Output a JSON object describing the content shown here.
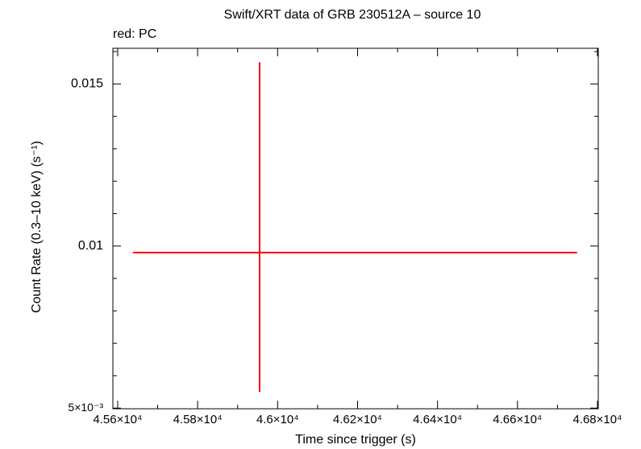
{
  "chart_data": {
    "type": "errorbar",
    "title": "Swift/XRT data of GRB 230512A – source 10",
    "subtitle": "red: PC",
    "x_label": "Time since trigger (s)",
    "y_label": "Count Rate (0.3–10 keV) (s⁻¹)",
    "series": [
      {
        "color": "#ff0000",
        "x": [
          45955
        ],
        "values": [
          0.0098
        ],
        "xerr_minus": [
          317
        ],
        "xerr_plus": [
          794
        ],
        "yerr_minus": [
          0.0043
        ],
        "yerr_plus": [
          0.00587
        ]
      }
    ],
    "xlim": [
      45588,
      46802
    ],
    "xticks": [
      {
        "value": 45600,
        "label": "4.56×10⁴"
      },
      {
        "value": 45800,
        "label": "4.58×10⁴"
      },
      {
        "value": 46000,
        "label": "4.6×10⁴"
      },
      {
        "value": 46200,
        "label": "4.62×10⁴"
      },
      {
        "value": 46400,
        "label": "4.64×10⁴"
      },
      {
        "value": 46600,
        "label": "4.66×10⁴"
      },
      {
        "value": 46800,
        "label": "4.68×10⁴"
      }
    ],
    "xminor_ticks": [
      45700,
      45900,
      46100,
      46300,
      46500,
      46700
    ],
    "ylim": [
      0.00498,
      0.0161
    ],
    "yticks": [
      {
        "value": 0.005,
        "label": "5×10⁻³"
      },
      0.01,
      0.015
    ],
    "yminor_ticks": [
      0.006,
      0.007,
      0.008,
      0.009,
      0.011,
      0.012,
      0.013,
      0.014,
      0.016
    ]
  }
}
